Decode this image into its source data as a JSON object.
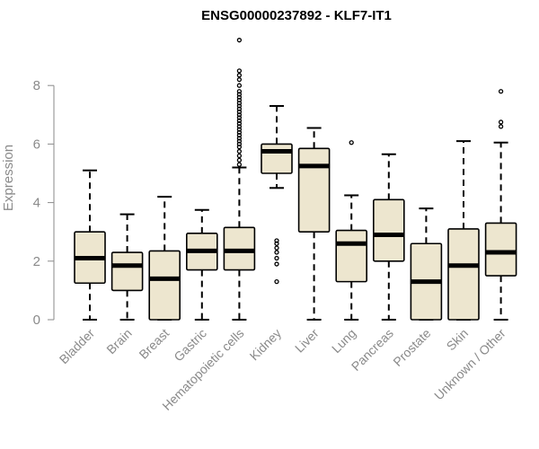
{
  "chart_data": {
    "type": "box",
    "title": "ENSG00000237892 - KLF7-IT1",
    "xlabel": "",
    "ylabel": "Expression",
    "ylim": [
      0,
      9.6
    ],
    "yticks": [
      0,
      2,
      4,
      6,
      8
    ],
    "grid": false,
    "box_fill": "#ede6cf",
    "box_stroke": "#000000",
    "axis_color": "#8a8a8a",
    "categories": [
      "Bladder",
      "Brain",
      "Breast",
      "Gastric",
      "Hematopoietic cells",
      "Kidney",
      "Liver",
      "Lung",
      "Pancreas",
      "Prostate",
      "Skin",
      "Unknown / Other"
    ],
    "boxes": [
      {
        "min": 0,
        "q1": 1.25,
        "median": 2.1,
        "q3": 3.0,
        "max": 5.1,
        "outliers": []
      },
      {
        "min": 0,
        "q1": 1.0,
        "median": 1.85,
        "q3": 2.3,
        "max": 3.6,
        "outliers": []
      },
      {
        "min": 0,
        "q1": 0,
        "median": 1.4,
        "q3": 2.35,
        "max": 4.2,
        "outliers": []
      },
      {
        "min": 0,
        "q1": 1.7,
        "median": 2.35,
        "q3": 2.95,
        "max": 3.75,
        "outliers": []
      },
      {
        "min": 0,
        "q1": 1.7,
        "median": 2.35,
        "q3": 3.15,
        "max": 5.2,
        "outliers": [
          5.3,
          5.45,
          5.6,
          5.75,
          5.9,
          6.0,
          6.1,
          6.2,
          6.3,
          6.4,
          6.5,
          6.6,
          6.7,
          6.8,
          6.9,
          7.0,
          7.1,
          7.2,
          7.3,
          7.4,
          7.5,
          7.6,
          7.7,
          7.8,
          8.0,
          8.2,
          8.35,
          8.5,
          9.55
        ]
      },
      {
        "min": 4.5,
        "q1": 5.0,
        "median": 5.75,
        "q3": 6.0,
        "max": 7.3,
        "outliers": [
          1.3,
          1.9,
          2.1,
          2.3,
          2.45,
          2.6,
          2.7
        ]
      },
      {
        "min": 0,
        "q1": 3.0,
        "median": 5.25,
        "q3": 5.85,
        "max": 6.55,
        "outliers": []
      },
      {
        "min": 0,
        "q1": 1.3,
        "median": 2.6,
        "q3": 3.05,
        "max": 4.25,
        "outliers": [
          6.05
        ]
      },
      {
        "min": 0,
        "q1": 2.0,
        "median": 2.9,
        "q3": 4.1,
        "max": 5.65,
        "outliers": []
      },
      {
        "min": 0,
        "q1": 0,
        "median": 1.3,
        "q3": 2.6,
        "max": 3.8,
        "outliers": []
      },
      {
        "min": 0,
        "q1": 0,
        "median": 1.85,
        "q3": 3.1,
        "max": 6.1,
        "outliers": []
      },
      {
        "min": 0,
        "q1": 1.5,
        "median": 2.3,
        "q3": 3.3,
        "max": 6.05,
        "outliers": [
          6.6,
          6.75,
          7.8
        ]
      }
    ]
  }
}
